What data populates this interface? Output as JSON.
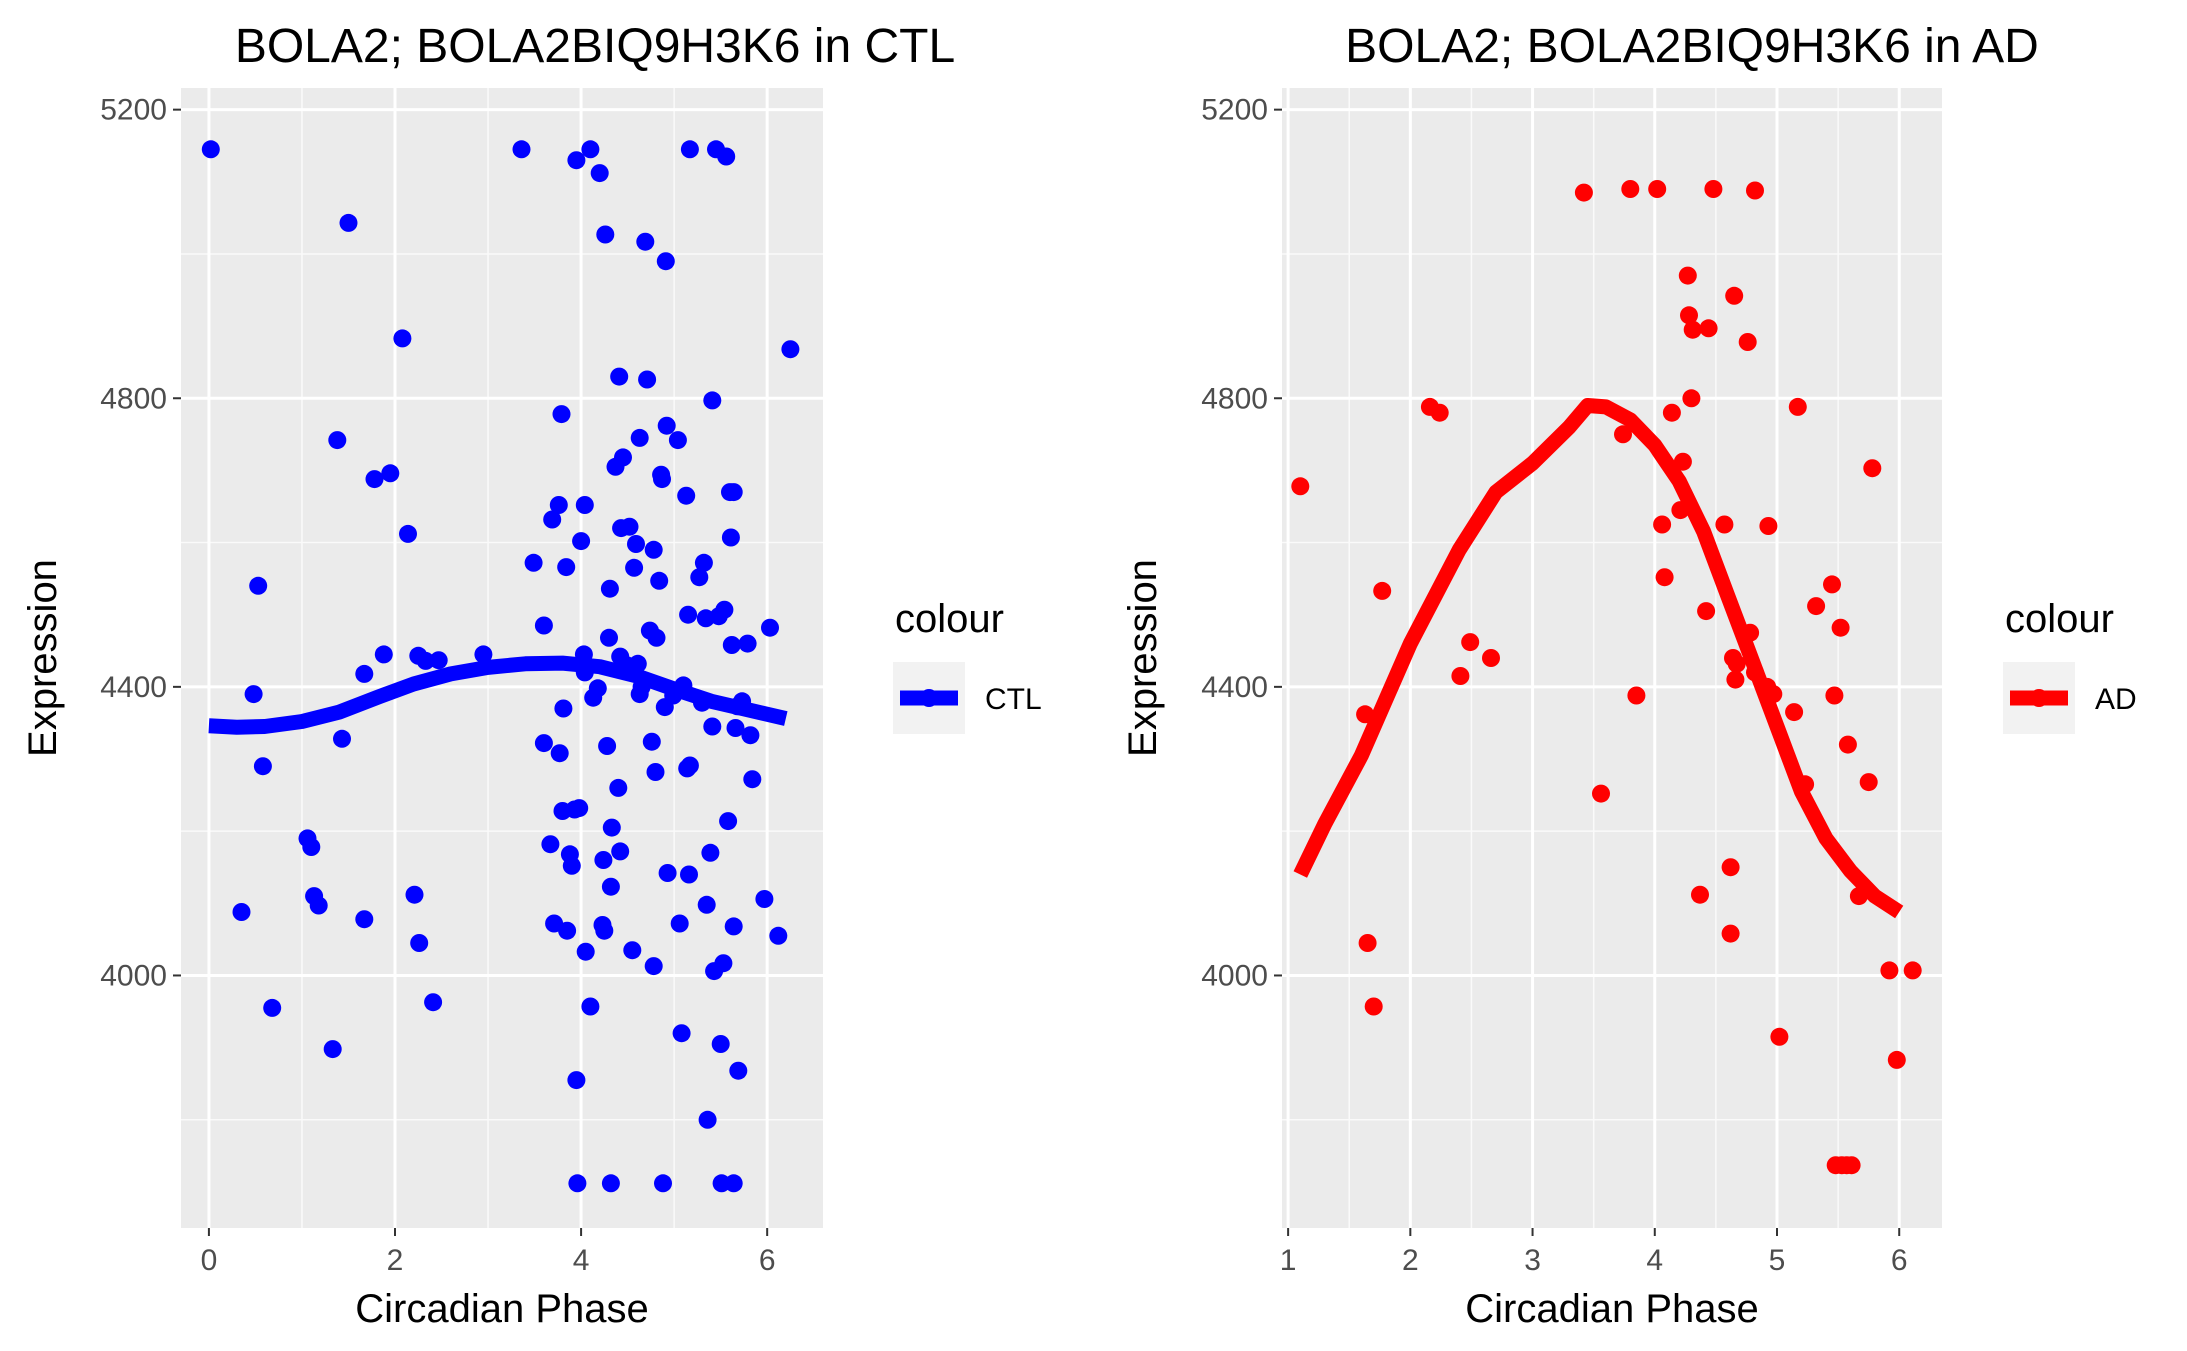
{
  "chart_data": [
    {
      "type": "scatter",
      "title": "BOLA2; BOLA2BIQ9H3K6 in CTL",
      "xlabel": "Circadian Phase",
      "ylabel": "Expression",
      "xlim": [
        -0.3,
        6.6
      ],
      "ylim": [
        3650,
        5230
      ],
      "xticks": [
        0,
        2,
        4,
        6
      ],
      "yticks": [
        4000,
        4400,
        4800,
        5200
      ],
      "grid": true,
      "legend": {
        "title": "colour",
        "position": "right",
        "label": "CTL"
      },
      "color": "#0000ff",
      "series": [
        {
          "name": "CTL",
          "points": [
            [
              0.02,
              5145
            ],
            [
              0.35,
              4088
            ],
            [
              0.48,
              4390
            ],
            [
              0.53,
              4540
            ],
            [
              0.58,
              4290
            ],
            [
              0.68,
              3955
            ],
            [
              1.06,
              4190
            ],
            [
              1.1,
              4178
            ],
            [
              1.13,
              4110
            ],
            [
              1.18,
              4097
            ],
            [
              1.33,
              3898
            ],
            [
              1.38,
              4742
            ],
            [
              1.43,
              4328
            ],
            [
              1.5,
              5043
            ],
            [
              1.67,
              4078
            ],
            [
              1.67,
              4418
            ],
            [
              1.78,
              4688
            ],
            [
              1.88,
              4445
            ],
            [
              1.95,
              4696
            ],
            [
              2.08,
              4883
            ],
            [
              2.14,
              4612
            ],
            [
              2.21,
              4112
            ],
            [
              2.25,
              4443
            ],
            [
              2.26,
              4045
            ],
            [
              2.33,
              4436
            ],
            [
              2.41,
              3963
            ],
            [
              2.47,
              4437
            ],
            [
              2.95,
              4445
            ],
            [
              3.36,
              5145
            ],
            [
              3.49,
              4572
            ],
            [
              3.6,
              4485
            ],
            [
              3.6,
              4322
            ],
            [
              3.67,
              4182
            ],
            [
              3.69,
              4632
            ],
            [
              3.71,
              4072
            ],
            [
              3.76,
              4652
            ],
            [
              3.77,
              4308
            ],
            [
              3.79,
              4778
            ],
            [
              3.8,
              4228
            ],
            [
              3.81,
              4370
            ],
            [
              3.84,
              4566
            ],
            [
              3.85,
              4062
            ],
            [
              3.88,
              4168
            ],
            [
              3.9,
              4152
            ],
            [
              3.93,
              4230
            ],
            [
              3.95,
              3855
            ],
            [
              3.95,
              5130
            ],
            [
              3.96,
              3712
            ],
            [
              3.98,
              4232
            ],
            [
              4.0,
              4602
            ],
            [
              4.03,
              4445
            ],
            [
              4.04,
              4420
            ],
            [
              4.04,
              4652
            ],
            [
              4.05,
              4033
            ],
            [
              4.1,
              5145
            ],
            [
              4.1,
              3957
            ],
            [
              4.13,
              4385
            ],
            [
              4.18,
              4398
            ],
            [
              4.2,
              5112
            ],
            [
              4.23,
              4070
            ],
            [
              4.24,
              4160
            ],
            [
              4.25,
              4062
            ],
            [
              4.26,
              5027
            ],
            [
              4.28,
              4318
            ],
            [
              4.3,
              4468
            ],
            [
              4.31,
              4536
            ],
            [
              4.32,
              3712
            ],
            [
              4.32,
              4123
            ],
            [
              4.33,
              4205
            ],
            [
              4.37,
              4705
            ],
            [
              4.4,
              4260
            ],
            [
              4.41,
              4830
            ],
            [
              4.42,
              4442
            ],
            [
              4.42,
              4172
            ],
            [
              4.43,
              4620
            ],
            [
              4.45,
              4718
            ],
            [
              4.49,
              4430
            ],
            [
              4.52,
              4622
            ],
            [
              4.55,
              4035
            ],
            [
              4.57,
              4565
            ],
            [
              4.59,
              4598
            ],
            [
              4.61,
              4432
            ],
            [
              4.63,
              4390
            ],
            [
              4.63,
              4745
            ],
            [
              4.65,
              4400
            ],
            [
              4.69,
              5017
            ],
            [
              4.71,
              4826
            ],
            [
              4.74,
              4478
            ],
            [
              4.76,
              4324
            ],
            [
              4.78,
              4590
            ],
            [
              4.78,
              4013
            ],
            [
              4.8,
              4282
            ],
            [
              4.81,
              4468
            ],
            [
              4.84,
              4547
            ],
            [
              4.86,
              4694
            ],
            [
              4.87,
              4688
            ],
            [
              4.88,
              3712
            ],
            [
              4.9,
              4372
            ],
            [
              4.91,
              4990
            ],
            [
              4.92,
              4762
            ],
            [
              4.93,
              4142
            ],
            [
              4.99,
              4388
            ],
            [
              5.04,
              4742
            ],
            [
              5.06,
              4072
            ],
            [
              5.08,
              3920
            ],
            [
              5.1,
              4402
            ],
            [
              5.13,
              4665
            ],
            [
              5.14,
              4287
            ],
            [
              5.15,
              4500
            ],
            [
              5.16,
              4140
            ],
            [
              5.17,
              5145
            ],
            [
              5.17,
              4291
            ],
            [
              5.27,
              4552
            ],
            [
              5.3,
              4378
            ],
            [
              5.32,
              4572
            ],
            [
              5.34,
              4495
            ],
            [
              5.35,
              4098
            ],
            [
              5.36,
              3800
            ],
            [
              5.39,
              4170
            ],
            [
              5.41,
              4797
            ],
            [
              5.41,
              4345
            ],
            [
              5.43,
              4006
            ],
            [
              5.45,
              5145
            ],
            [
              5.48,
              4498
            ],
            [
              5.5,
              3905
            ],
            [
              5.51,
              3712
            ],
            [
              5.53,
              4017
            ],
            [
              5.54,
              4507
            ],
            [
              5.56,
              5135
            ],
            [
              5.58,
              4214
            ],
            [
              5.6,
              4670
            ],
            [
              5.61,
              4607
            ],
            [
              5.62,
              4458
            ],
            [
              5.64,
              4068
            ],
            [
              5.64,
              4670
            ],
            [
              5.64,
              3712
            ],
            [
              5.66,
              4343
            ],
            [
              5.68,
              4373
            ],
            [
              5.69,
              3868
            ],
            [
              5.73,
              4380
            ],
            [
              5.79,
              4460
            ],
            [
              5.82,
              4333
            ],
            [
              5.84,
              4272
            ],
            [
              5.97,
              4106
            ],
            [
              6.03,
              4482
            ],
            [
              6.12,
              4055
            ],
            [
              6.25,
              4868
            ]
          ],
          "smooth": [
            [
              0.0,
              4346
            ],
            [
              0.3,
              4344
            ],
            [
              0.6,
              4345
            ],
            [
              1.0,
              4352
            ],
            [
              1.4,
              4365
            ],
            [
              1.8,
              4385
            ],
            [
              2.2,
              4404
            ],
            [
              2.6,
              4418
            ],
            [
              3.0,
              4427
            ],
            [
              3.4,
              4432
            ],
            [
              3.8,
              4433
            ],
            [
              4.2,
              4428
            ],
            [
              4.6,
              4415
            ],
            [
              5.0,
              4397
            ],
            [
              5.4,
              4380
            ],
            [
              5.8,
              4368
            ],
            [
              6.2,
              4356
            ]
          ]
        }
      ]
    },
    {
      "type": "scatter",
      "title": "BOLA2; BOLA2BIQ9H3K6 in AD",
      "xlabel": "Circadian Phase",
      "ylabel": "Expression",
      "xlim": [
        0.95,
        6.35
      ],
      "ylim": [
        3650,
        5230
      ],
      "xticks": [
        1,
        2,
        3,
        4,
        5,
        6
      ],
      "yticks": [
        4000,
        4400,
        4800,
        5200
      ],
      "grid": true,
      "legend": {
        "title": "colour",
        "position": "right",
        "label": "AD"
      },
      "color": "#ff0000",
      "series": [
        {
          "name": "AD",
          "points": [
            [
              1.1,
              4678
            ],
            [
              1.63,
              4362
            ],
            [
              1.65,
              4045
            ],
            [
              1.7,
              3957
            ],
            [
              1.77,
              4533
            ],
            [
              2.16,
              4788
            ],
            [
              2.24,
              4780
            ],
            [
              2.41,
              4415
            ],
            [
              2.49,
              4462
            ],
            [
              2.66,
              4440
            ],
            [
              3.42,
              5085
            ],
            [
              3.56,
              4252
            ],
            [
              3.74,
              4750
            ],
            [
              3.8,
              5090
            ],
            [
              3.85,
              4388
            ],
            [
              4.02,
              5090
            ],
            [
              4.06,
              4625
            ],
            [
              4.08,
              4552
            ],
            [
              4.14,
              4780
            ],
            [
              4.21,
              4645
            ],
            [
              4.23,
              4712
            ],
            [
              4.27,
              4970
            ],
            [
              4.28,
              4915
            ],
            [
              4.3,
              4800
            ],
            [
              4.31,
              4895
            ],
            [
              4.37,
              4112
            ],
            [
              4.42,
              4505
            ],
            [
              4.44,
              4897
            ],
            [
              4.48,
              5090
            ],
            [
              4.57,
              4625
            ],
            [
              4.62,
              4058
            ],
            [
              4.62,
              4150
            ],
            [
              4.64,
              4440
            ],
            [
              4.65,
              4942
            ],
            [
              4.66,
              4410
            ],
            [
              4.67,
              4432
            ],
            [
              4.76,
              4878
            ],
            [
              4.78,
              4475
            ],
            [
              4.82,
              5088
            ],
            [
              4.82,
              4420
            ],
            [
              4.92,
              4400
            ],
            [
              4.93,
              4623
            ],
            [
              4.97,
              4390
            ],
            [
              5.02,
              3915
            ],
            [
              5.14,
              4365
            ],
            [
              5.17,
              4788
            ],
            [
              5.23,
              4265
            ],
            [
              5.32,
              4512
            ],
            [
              5.45,
              4542
            ],
            [
              5.47,
              4388
            ],
            [
              5.48,
              3737
            ],
            [
              5.52,
              4482
            ],
            [
              5.53,
              3737
            ],
            [
              5.57,
              3737
            ],
            [
              5.58,
              4320
            ],
            [
              5.61,
              3737
            ],
            [
              5.67,
              4110
            ],
            [
              5.75,
              4268
            ],
            [
              5.78,
              4703
            ],
            [
              5.92,
              4007
            ],
            [
              5.98,
              3883
            ],
            [
              6.11,
              4007
            ]
          ],
          "smooth": [
            [
              1.1,
              4140
            ],
            [
              1.3,
              4210
            ],
            [
              1.6,
              4305
            ],
            [
              2.0,
              4460
            ],
            [
              2.4,
              4590
            ],
            [
              2.7,
              4670
            ],
            [
              3.0,
              4710
            ],
            [
              3.3,
              4760
            ],
            [
              3.45,
              4790
            ],
            [
              3.6,
              4788
            ],
            [
              3.8,
              4770
            ],
            [
              4.0,
              4735
            ],
            [
              4.2,
              4685
            ],
            [
              4.4,
              4615
            ],
            [
              4.6,
              4525
            ],
            [
              4.8,
              4435
            ],
            [
              5.0,
              4345
            ],
            [
              5.2,
              4255
            ],
            [
              5.4,
              4190
            ],
            [
              5.6,
              4145
            ],
            [
              5.8,
              4110
            ],
            [
              6.0,
              4088
            ]
          ]
        }
      ]
    }
  ]
}
